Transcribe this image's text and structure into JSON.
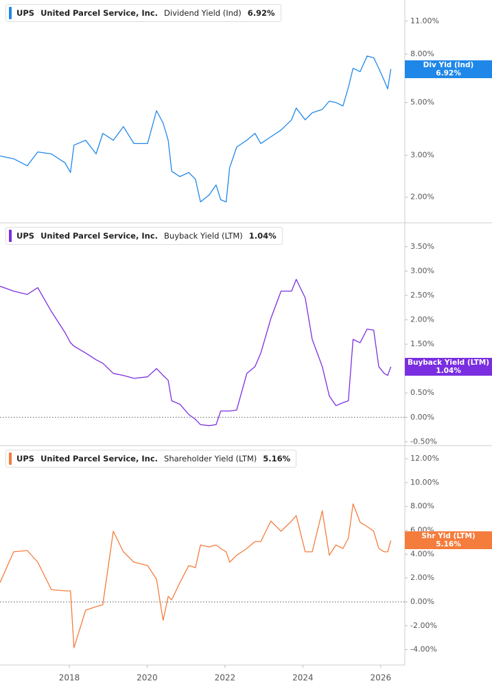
{
  "chart_data": [
    {
      "type": "line",
      "ticker": "UPS",
      "company": "United Parcel Service, Inc.",
      "metric": "Dividend Yield (Ind)",
      "latest": {
        "value": 6.92,
        "label": "6.92%"
      },
      "x": [
        2016.22,
        2016.57,
        2016.92,
        2017.19,
        2017.54,
        2017.89,
        2018.03,
        2018.12,
        2018.42,
        2018.69,
        2018.86,
        2019.13,
        2019.39,
        2019.66,
        2020.01,
        2020.24,
        2020.41,
        2020.54,
        2020.63,
        2020.84,
        2021.07,
        2021.24,
        2021.37,
        2021.59,
        2021.77,
        2021.89,
        2022.03,
        2022.12,
        2022.3,
        2022.56,
        2022.77,
        2022.92,
        2023.18,
        2023.44,
        2023.71,
        2023.83,
        2024.06,
        2024.24,
        2024.5,
        2024.68,
        2024.85,
        2025.03,
        2025.17,
        2025.29,
        2025.47,
        2025.65,
        2025.82,
        2025.95,
        2026.09,
        2026.18,
        2026.26
      ],
      "series": [
        {
          "name": "Div Yld (Ind)",
          "color": "#1f87e8",
          "values": [
            2.98,
            2.9,
            2.71,
            3.1,
            3.04,
            2.79,
            2.54,
            3.31,
            3.47,
            3.04,
            3.71,
            3.47,
            3.96,
            3.36,
            3.36,
            4.62,
            4.1,
            3.47,
            2.57,
            2.44,
            2.54,
            2.38,
            1.91,
            2.04,
            2.25,
            1.95,
            1.91,
            2.66,
            3.25,
            3.47,
            3.71,
            3.36,
            3.59,
            3.83,
            4.23,
            4.74,
            4.23,
            4.53,
            4.68,
            5.07,
            5.0,
            4.84,
            5.79,
            6.97,
            6.74,
            7.85,
            7.72,
            6.97,
            6.19,
            5.71,
            6.92
          ]
        }
      ],
      "xlim": [
        2016.22,
        2026.62
      ],
      "ylim": [
        1.56,
        13.5
      ],
      "log_scale": true,
      "zero_line": false,
      "yticks": [
        {
          "value": 2,
          "label": "2.00%"
        },
        {
          "value": 3,
          "label": "3.00%"
        },
        {
          "value": 5,
          "label": "5.00%"
        },
        {
          "value": 8,
          "label": "8.00%"
        },
        {
          "value": 11,
          "label": "11.00%"
        }
      ]
    },
    {
      "type": "line",
      "ticker": "UPS",
      "company": "United Parcel Service, Inc.",
      "metric": "Buyback Yield (LTM)",
      "latest": {
        "value": 1.04,
        "label": "1.04%"
      },
      "x": [
        2016.22,
        2016.57,
        2016.92,
        2017.19,
        2017.54,
        2017.89,
        2018.03,
        2018.12,
        2018.42,
        2018.69,
        2018.86,
        2019.13,
        2019.39,
        2019.66,
        2020.01,
        2020.24,
        2020.41,
        2020.54,
        2020.63,
        2020.84,
        2021.07,
        2021.24,
        2021.37,
        2021.59,
        2021.77,
        2021.89,
        2022.03,
        2022.12,
        2022.3,
        2022.56,
        2022.77,
        2022.92,
        2023.18,
        2023.44,
        2023.71,
        2023.83,
        2024.06,
        2024.24,
        2024.5,
        2024.68,
        2024.85,
        2025.03,
        2025.17,
        2025.29,
        2025.47,
        2025.65,
        2025.82,
        2025.95,
        2026.09,
        2026.18,
        2026.26
      ],
      "series": [
        {
          "name": "Buyback Yield (LTM)",
          "color": "#7a2ee0",
          "values": [
            2.69,
            2.59,
            2.52,
            2.66,
            2.17,
            1.74,
            1.53,
            1.46,
            1.32,
            1.18,
            1.11,
            0.9,
            0.86,
            0.8,
            0.83,
            1.0,
            0.86,
            0.76,
            0.34,
            0.27,
            0.06,
            -0.04,
            -0.15,
            -0.17,
            -0.15,
            0.13,
            0.13,
            0.13,
            0.15,
            0.9,
            1.04,
            1.32,
            2.03,
            2.59,
            2.59,
            2.83,
            2.45,
            1.6,
            1.04,
            0.44,
            0.24,
            0.3,
            0.34,
            1.6,
            1.53,
            1.81,
            1.79,
            1.04,
            0.9,
            0.86,
            1.04
          ]
        }
      ],
      "xlim": [
        2016.22,
        2026.62
      ],
      "ylim": [
        -0.58,
        3.99
      ],
      "log_scale": false,
      "zero_line": true,
      "yticks": [
        {
          "value": -0.5,
          "label": "-0.50%"
        },
        {
          "value": 0,
          "label": "0.00%"
        },
        {
          "value": 0.5,
          "label": "0.50%"
        },
        {
          "value": 1,
          "label": "1.00%"
        },
        {
          "value": 1.5,
          "label": "1.50%"
        },
        {
          "value": 2,
          "label": "2.00%"
        },
        {
          "value": 2.5,
          "label": "2.50%"
        },
        {
          "value": 3,
          "label": "3.00%"
        },
        {
          "value": 3.5,
          "label": "3.50%"
        }
      ]
    },
    {
      "type": "line",
      "ticker": "UPS",
      "company": "United Parcel Service, Inc.",
      "metric": "Shareholder Yield (LTM)",
      "latest": {
        "value": 5.16,
        "label": "5.16%"
      },
      "x": [
        2016.22,
        2016.57,
        2016.92,
        2017.19,
        2017.54,
        2017.89,
        2018.03,
        2018.12,
        2018.42,
        2018.69,
        2018.86,
        2019.13,
        2019.39,
        2019.66,
        2020.01,
        2020.24,
        2020.41,
        2020.54,
        2020.63,
        2020.84,
        2021.07,
        2021.24,
        2021.37,
        2021.59,
        2021.77,
        2021.89,
        2022.03,
        2022.12,
        2022.3,
        2022.56,
        2022.77,
        2022.92,
        2023.18,
        2023.44,
        2023.71,
        2023.83,
        2024.06,
        2024.24,
        2024.5,
        2024.68,
        2024.85,
        2025.03,
        2025.17,
        2025.29,
        2025.47,
        2025.65,
        2025.82,
        2025.95,
        2026.09,
        2026.18,
        2026.26
      ],
      "series": [
        {
          "name": "Shr Yld (LTM)",
          "color": "#f47c3c",
          "values": [
            1.61,
            4.2,
            4.31,
            3.33,
            1.03,
            0.92,
            0.92,
            -3.85,
            -0.69,
            -0.4,
            -0.23,
            5.92,
            4.2,
            3.33,
            3.05,
            1.9,
            -1.55,
            0.46,
            0.17,
            1.61,
            3.05,
            2.87,
            4.77,
            4.6,
            4.77,
            4.48,
            4.2,
            3.33,
            3.91,
            4.48,
            5.06,
            5.06,
            6.78,
            5.92,
            6.78,
            7.24,
            4.2,
            4.2,
            7.64,
            3.91,
            4.77,
            4.48,
            5.34,
            8.22,
            6.67,
            6.32,
            5.92,
            4.48,
            4.2,
            4.2,
            5.16
          ]
        }
      ],
      "xlim": [
        2016.22,
        2026.62
      ],
      "ylim": [
        -5.29,
        13.1
      ],
      "log_scale": false,
      "zero_line": true,
      "yticks": [
        {
          "value": -4,
          "label": "-4.00%"
        },
        {
          "value": -2,
          "label": "-2.00%"
        },
        {
          "value": 0,
          "label": "0.00%"
        },
        {
          "value": 2,
          "label": "2.00%"
        },
        {
          "value": 4,
          "label": "4.00%"
        },
        {
          "value": 6,
          "label": "6.00%"
        },
        {
          "value": 8,
          "label": "8.00%"
        },
        {
          "value": 10,
          "label": "10.00%"
        },
        {
          "value": 12,
          "label": "12.00%"
        }
      ],
      "xticks": [
        2018,
        2020,
        2022,
        2024,
        2026
      ]
    }
  ]
}
